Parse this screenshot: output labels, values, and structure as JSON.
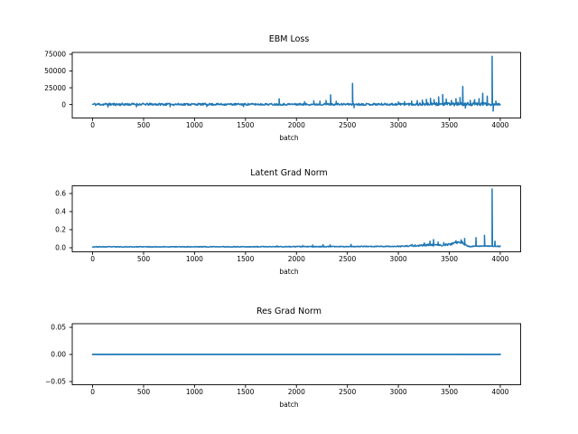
{
  "figure": {
    "background": "#ffffff",
    "axis_color": "#000000",
    "text_color": "#000000",
    "line_color": "#1f77b4"
  },
  "chart_data": [
    {
      "type": "line",
      "title": "EBM Loss",
      "xlabel": "batch",
      "ylabel": "",
      "grid": false,
      "legend": null,
      "line_color": "#1f77b4",
      "line_width": 1.5,
      "xlim": [
        -200,
        4200
      ],
      "ylim": [
        -20100,
        77700
      ],
      "xticks": [
        0,
        500,
        1000,
        1500,
        2000,
        2500,
        3000,
        3500,
        4000
      ],
      "xtick_labels": [
        "0",
        "500",
        "1000",
        "1500",
        "2000",
        "2500",
        "3000",
        "3500",
        "4000"
      ],
      "yticks": [
        0,
        25000,
        50000,
        75000
      ],
      "ytick_labels": [
        "0",
        "25000",
        "50000",
        "75000"
      ],
      "x_start": 0,
      "x_end": 4000,
      "sample_step": 5,
      "seed": 11,
      "baseline_anchors": [
        [
          0,
          300
        ],
        [
          2600,
          350
        ],
        [
          3200,
          500
        ],
        [
          3600,
          700
        ],
        [
          3900,
          600
        ],
        [
          4000,
          400
        ]
      ],
      "noise_amp_anchors": [
        [
          0,
          2000
        ],
        [
          700,
          1600
        ],
        [
          1500,
          1400
        ],
        [
          2500,
          1400
        ],
        [
          3050,
          1800
        ],
        [
          3450,
          2400
        ],
        [
          3850,
          2400
        ],
        [
          3960,
          1400
        ],
        [
          4000,
          1200
        ]
      ],
      "spikes": [
        [
          150,
          -3600
        ],
        [
          430,
          -3400
        ],
        [
          760,
          -3300
        ],
        [
          1120,
          -3100
        ],
        [
          1480,
          -3000
        ],
        [
          1830,
          8500
        ],
        [
          2080,
          4200
        ],
        [
          2170,
          5600
        ],
        [
          2230,
          5000
        ],
        [
          2290,
          6000
        ],
        [
          2335,
          14500
        ],
        [
          2390,
          4800
        ],
        [
          2550,
          31500
        ],
        [
          2565,
          -4800
        ],
        [
          3000,
          3800
        ],
        [
          3060,
          4200
        ],
        [
          3130,
          5000
        ],
        [
          3185,
          5800
        ],
        [
          3235,
          6600
        ],
        [
          3275,
          7800
        ],
        [
          3315,
          9200
        ],
        [
          3350,
          7200
        ],
        [
          3395,
          11500
        ],
        [
          3435,
          14800
        ],
        [
          3470,
          8200
        ],
        [
          3520,
          6200
        ],
        [
          3565,
          8800
        ],
        [
          3605,
          10500
        ],
        [
          3632,
          27000
        ],
        [
          3658,
          -5200
        ],
        [
          3705,
          6200
        ],
        [
          3748,
          7200
        ],
        [
          3792,
          8800
        ],
        [
          3828,
          16800
        ],
        [
          3872,
          12500
        ],
        [
          3920,
          72000
        ],
        [
          3930,
          -9800
        ],
        [
          3957,
          5200
        ]
      ]
    },
    {
      "type": "line",
      "title": "Latent Grad Norm",
      "xlabel": "batch",
      "ylabel": "",
      "grid": false,
      "legend": null,
      "line_color": "#1f77b4",
      "line_width": 1.5,
      "xlim": [
        -200,
        4200
      ],
      "ylim": [
        -0.045,
        0.685
      ],
      "xticks": [
        0,
        500,
        1000,
        1500,
        2000,
        2500,
        3000,
        3500,
        4000
      ],
      "xtick_labels": [
        "0",
        "500",
        "1000",
        "1500",
        "2000",
        "2500",
        "3000",
        "3500",
        "4000"
      ],
      "yticks": [
        0.0,
        0.2,
        0.4,
        0.6
      ],
      "ytick_labels": [
        "0.0",
        "0.2",
        "0.4",
        "0.6"
      ],
      "x_start": 0,
      "x_end": 4000,
      "sample_step": 5,
      "seed": 23,
      "baseline_anchors": [
        [
          0,
          0.01
        ],
        [
          1500,
          0.011
        ],
        [
          2400,
          0.013
        ],
        [
          3050,
          0.016
        ],
        [
          3150,
          0.022
        ],
        [
          3280,
          0.03
        ],
        [
          3420,
          0.028
        ],
        [
          3510,
          0.038
        ],
        [
          3560,
          0.055
        ],
        [
          3625,
          0.06
        ],
        [
          3660,
          0.028
        ],
        [
          3700,
          0.014
        ],
        [
          3780,
          0.018
        ],
        [
          3850,
          0.02
        ],
        [
          3905,
          0.018
        ],
        [
          3950,
          0.016
        ],
        [
          4000,
          0.015
        ]
      ],
      "noise_amp_anchors": [
        [
          0,
          0.0035
        ],
        [
          2900,
          0.0045
        ],
        [
          3250,
          0.01
        ],
        [
          3650,
          0.01
        ],
        [
          3710,
          0.005
        ],
        [
          4000,
          0.0045
        ]
      ],
      "spikes": [
        [
          1810,
          0.021
        ],
        [
          2060,
          0.025
        ],
        [
          2160,
          0.03
        ],
        [
          2260,
          0.034
        ],
        [
          2330,
          0.031
        ],
        [
          2535,
          0.037
        ],
        [
          3135,
          0.036
        ],
        [
          3255,
          0.052
        ],
        [
          3310,
          0.072
        ],
        [
          3345,
          0.09
        ],
        [
          3390,
          0.062
        ],
        [
          3445,
          0.057
        ],
        [
          3565,
          0.078
        ],
        [
          3615,
          0.088
        ],
        [
          3650,
          0.102
        ],
        [
          3762,
          0.112
        ],
        [
          3845,
          0.138
        ],
        [
          3920,
          0.65
        ],
        [
          3948,
          0.072
        ]
      ]
    },
    {
      "type": "line",
      "title": "Res Grad Norm",
      "xlabel": "batch",
      "ylabel": "",
      "grid": false,
      "legend": null,
      "line_color": "#1f77b4",
      "line_width": 1.8,
      "xlim": [
        -200,
        4200
      ],
      "ylim": [
        -0.0558,
        0.0567
      ],
      "xticks": [
        0,
        500,
        1000,
        1500,
        2000,
        2500,
        3000,
        3500,
        4000
      ],
      "xtick_labels": [
        "0",
        "500",
        "1000",
        "1500",
        "2000",
        "2500",
        "3000",
        "3500",
        "4000"
      ],
      "yticks": [
        -0.05,
        0.0,
        0.05
      ],
      "ytick_labels": [
        "−0.05",
        "0.00",
        "0.05"
      ],
      "x_start": 0,
      "x_end": 4000,
      "sample_step": 50,
      "seed": 1,
      "baseline_anchors": [
        [
          0,
          0
        ],
        [
          4000,
          0
        ]
      ],
      "noise_amp_anchors": [
        [
          0,
          0
        ],
        [
          4000,
          0
        ]
      ],
      "spikes": []
    }
  ]
}
